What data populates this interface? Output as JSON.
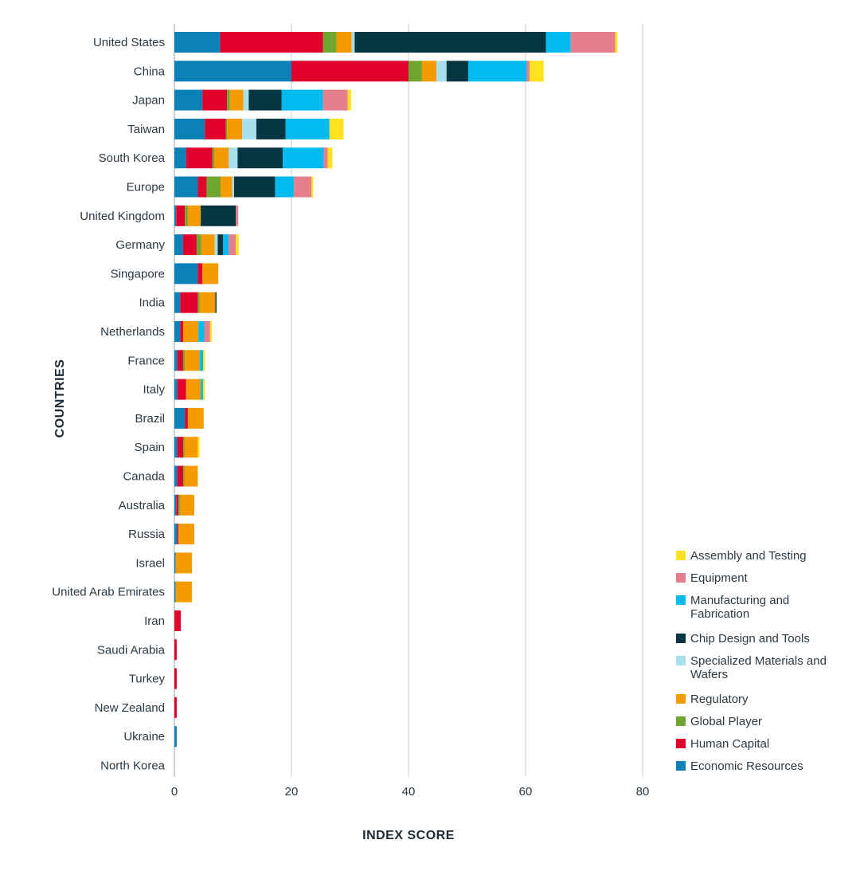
{
  "chart_data": {
    "type": "bar",
    "orientation": "horizontal",
    "stacked": true,
    "xlabel": "INDEX SCORE",
    "ylabel": "COUNTRIES",
    "xlim": [
      0,
      80
    ],
    "xticks": [
      0,
      20,
      40,
      60,
      80
    ],
    "grid": "vertical",
    "legend_position": "right",
    "categories": [
      "United States",
      "China",
      "Japan",
      "Taiwan",
      "South Korea",
      "Europe",
      "United Kingdom",
      "Germany",
      "Singapore",
      "India",
      "Netherlands",
      "France",
      "Italy",
      "Brazil",
      "Spain",
      "Canada",
      "Australia",
      "Russia",
      "Israel",
      "United Arab Emirates",
      "Iran",
      "Saudi Arabia",
      "Turkey",
      "New Zealand",
      "Ukraine",
      "North Korea"
    ],
    "series": [
      {
        "name": "Economic Resources",
        "color": "#0a82b8",
        "values": [
          7.8,
          20.0,
          4.8,
          5.2,
          2.0,
          4.0,
          0.3,
          1.5,
          4.0,
          1.0,
          1.0,
          0.5,
          0.5,
          1.8,
          0.5,
          0.5,
          0.3,
          0.5,
          0.2,
          0.2,
          0.0,
          0.0,
          0.0,
          0.0,
          0.4,
          0.0
        ]
      },
      {
        "name": "Human Capital",
        "color": "#e0002b",
        "values": [
          17.6,
          20.0,
          4.2,
          3.6,
          4.5,
          1.5,
          1.5,
          2.3,
          0.8,
          3.0,
          0.5,
          1.0,
          1.5,
          0.5,
          1.0,
          1.0,
          0.4,
          0.2,
          0.0,
          0.0,
          1.1,
          0.4,
          0.4,
          0.4,
          0.0,
          0.0
        ]
      },
      {
        "name": "Global Player",
        "color": "#6fa62f",
        "values": [
          2.3,
          2.3,
          0.5,
          0.2,
          0.3,
          2.4,
          0.5,
          0.8,
          0.0,
          0.3,
          0.0,
          0.3,
          0.0,
          0.0,
          0.2,
          0.2,
          0.3,
          0.0,
          0.0,
          0.0,
          0.0,
          0.0,
          0.0,
          0.0,
          0.0,
          0.0
        ]
      },
      {
        "name": "Regulatory",
        "color": "#f59b00",
        "values": [
          2.6,
          2.5,
          2.3,
          2.6,
          2.5,
          2.0,
          2.2,
          2.3,
          2.7,
          2.7,
          2.6,
          2.5,
          2.5,
          2.7,
          2.3,
          2.3,
          2.4,
          2.7,
          2.8,
          2.8,
          0.0,
          0.0,
          0.0,
          0.0,
          0.0,
          0.0
        ]
      },
      {
        "name": "Specialized Materials and Wafers",
        "color": "#a7e1ef",
        "values": [
          0.5,
          1.7,
          0.9,
          2.4,
          1.5,
          0.3,
          0.0,
          0.5,
          0.0,
          0.0,
          0.0,
          0.0,
          0.0,
          0.0,
          0.0,
          0.0,
          0.0,
          0.0,
          0.0,
          0.0,
          0.0,
          0.0,
          0.0,
          0.0,
          0.0,
          0.0
        ]
      },
      {
        "name": "Chip Design and Tools",
        "color": "#063641",
        "values": [
          32.7,
          3.7,
          5.6,
          5.0,
          7.7,
          7.0,
          6.0,
          0.9,
          0.0,
          0.2,
          0.0,
          0.0,
          0.0,
          0.0,
          0.0,
          0.0,
          0.0,
          0.0,
          0.0,
          0.0,
          0.0,
          0.0,
          0.0,
          0.0,
          0.0,
          0.0
        ]
      },
      {
        "name": "Manufacturing and Fabrication",
        "color": "#00bbf0",
        "values": [
          4.2,
          10.0,
          7.1,
          7.5,
          7.0,
          3.2,
          0.0,
          1.0,
          0.0,
          0.0,
          1.0,
          0.6,
          0.4,
          0.0,
          0.0,
          0.0,
          0.0,
          0.0,
          0.0,
          0.0,
          0.0,
          0.0,
          0.0,
          0.0,
          0.0,
          0.0
        ]
      },
      {
        "name": "Equipment",
        "color": "#e57f8e",
        "values": [
          7.6,
          0.5,
          4.2,
          0.0,
          0.7,
          3.0,
          0.4,
          1.2,
          0.0,
          0.0,
          1.0,
          0.0,
          0.0,
          0.0,
          0.0,
          0.0,
          0.0,
          0.0,
          0.0,
          0.0,
          0.0,
          0.0,
          0.0,
          0.0,
          0.0,
          0.0
        ]
      },
      {
        "name": "Assembly and Testing",
        "color": "#ffe21f",
        "values": [
          0.4,
          2.4,
          0.6,
          2.4,
          0.8,
          0.3,
          0.0,
          0.5,
          0.0,
          0.0,
          0.3,
          0.3,
          0.3,
          0.0,
          0.3,
          0.0,
          0.0,
          0.0,
          0.0,
          0.0,
          0.0,
          0.0,
          0.0,
          0.0,
          0.0,
          0.0
        ]
      }
    ],
    "legend": [
      {
        "label": "Assembly and Testing",
        "color": "#ffe21f"
      },
      {
        "label": "Equipment",
        "color": "#e57f8e"
      },
      {
        "label": "Manufacturing and Fabrication",
        "color": "#00bbf0"
      },
      {
        "label": "Chip Design and Tools",
        "color": "#063641"
      },
      {
        "label": "Specialized Materials and Wafers",
        "color": "#a7e1ef"
      },
      {
        "label": "Regulatory",
        "color": "#f59b00"
      },
      {
        "label": "Global Player",
        "color": "#6fa62f"
      },
      {
        "label": "Human Capital",
        "color": "#e0002b"
      },
      {
        "label": "Economic Resources",
        "color": "#0a82b8"
      }
    ]
  }
}
